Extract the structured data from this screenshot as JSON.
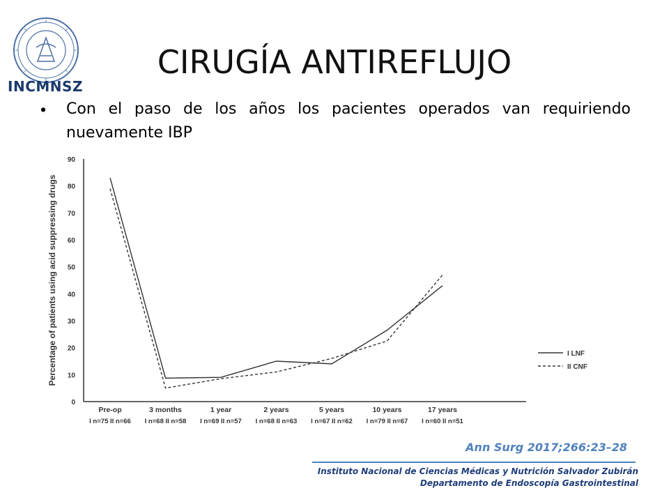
{
  "logo": {
    "text": "INCMNSZ"
  },
  "slide": {
    "title": "CIRUGÍA ANTIREFLUJO",
    "bullet": "Con el paso de los años los pacientes operados van requiriendo nuevamente IBP"
  },
  "chart_data": {
    "type": "line",
    "ylabel": "Percentage of patients using acid suppressing drugs",
    "xlabel": "",
    "ylim": [
      0,
      90
    ],
    "yticks": [
      "0",
      "10",
      "20",
      "30",
      "40",
      "50",
      "60",
      "70",
      "80",
      "90"
    ],
    "categories": [
      "Pre-op",
      "3 months",
      "1 year",
      "2 years",
      "5 years",
      "10 years",
      "17 years"
    ],
    "category_sublabels": [
      "I n=75 II n=66",
      "I n=68 II n=58",
      "I n=69 II n=57",
      "I n=68 II n=63",
      "I n=67 II n=62",
      "I n=79 II n=67",
      "I n=60 II n=51"
    ],
    "grid": false,
    "legend": "right",
    "series": [
      {
        "name": "I LNF",
        "style": "solid",
        "color": "#333333",
        "values": [
          83,
          8.7,
          9,
          15,
          14,
          26.5,
          43
        ]
      },
      {
        "name": "II CNF",
        "style": "dashed",
        "color": "#333333",
        "values": [
          79,
          5,
          8.5,
          11,
          16,
          22.5,
          47
        ]
      }
    ]
  },
  "citation": "Ann Surg 2017;266:23–28",
  "footer": {
    "line1": "Instituto Nacional de Ciencias Médicas y Nutrición Salvador Zubirán",
    "line2": "Departamento de Endoscopía Gastrointestinal"
  }
}
